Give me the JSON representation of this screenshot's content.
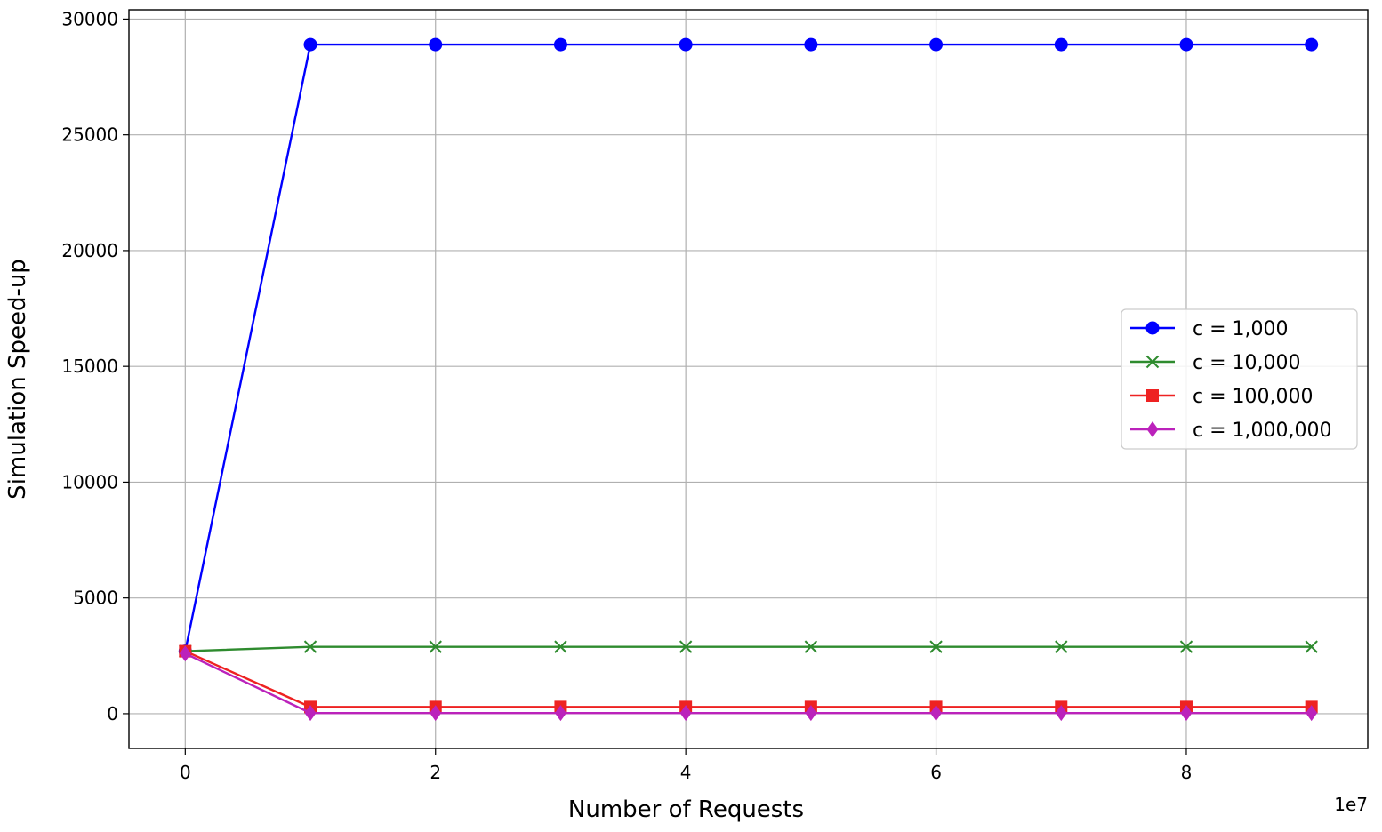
{
  "chart_data": {
    "type": "line",
    "title": "",
    "xlabel": "Number of Requests",
    "ylabel": "Simulation Speed-up",
    "x_offset_label": "1e7",
    "x": [
      0,
      10000000,
      20000000,
      30000000,
      40000000,
      50000000,
      60000000,
      70000000,
      80000000,
      90000000
    ],
    "xlim": [
      -4500000,
      94500000
    ],
    "ylim": [
      -1500,
      30400
    ],
    "x_ticks": [
      0,
      20000000,
      40000000,
      60000000,
      80000000
    ],
    "x_tick_labels": [
      "0",
      "2",
      "4",
      "6",
      "8"
    ],
    "y_ticks": [
      0,
      5000,
      10000,
      15000,
      20000,
      25000,
      30000
    ],
    "y_tick_labels": [
      "0",
      "5000",
      "10000",
      "15000",
      "20000",
      "25000",
      "30000"
    ],
    "grid": true,
    "legend_position": "center-right",
    "series": [
      {
        "name": "c = 1,000",
        "color": "#0000ff",
        "marker": "circle",
        "values": [
          2700,
          28900,
          28900,
          28900,
          28900,
          28900,
          28900,
          28900,
          28900,
          28900
        ]
      },
      {
        "name": "c = 10,000",
        "color": "#2e8b2e",
        "marker": "x",
        "values": [
          2700,
          2890,
          2890,
          2890,
          2890,
          2890,
          2890,
          2890,
          2890,
          2890
        ]
      },
      {
        "name": "c = 100,000",
        "color": "#ee2222",
        "marker": "square",
        "values": [
          2700,
          290,
          290,
          290,
          290,
          290,
          290,
          290,
          290,
          290
        ]
      },
      {
        "name": "c = 1,000,000",
        "color": "#bb22bb",
        "marker": "diamond",
        "values": [
          2600,
          30,
          30,
          30,
          30,
          30,
          30,
          30,
          30,
          30
        ]
      }
    ]
  }
}
